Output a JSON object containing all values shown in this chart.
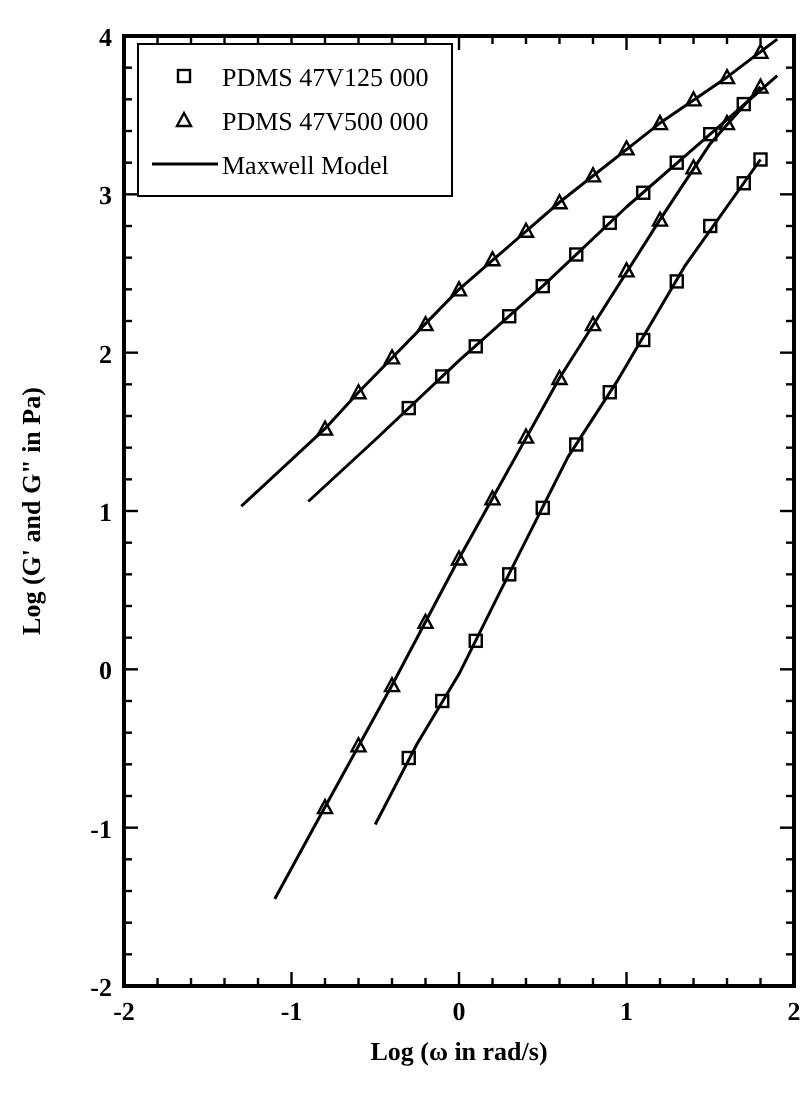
{
  "chart_data": {
    "type": "line",
    "xlabel": "Log (ω in rad/s)",
    "ylabel": "Log (G' and G\" in Pa)",
    "xlim": [
      -2,
      2
    ],
    "ylim": [
      -2,
      4
    ],
    "xticks": [
      -2,
      {
        "value": -1.8,
        "label": null
      },
      {
        "value": -1.6,
        "label": null
      },
      {
        "value": -1.4,
        "label": null
      },
      {
        "value": -1.2,
        "label": null
      },
      -1,
      {
        "value": -0.8,
        "label": null
      },
      {
        "value": -0.6,
        "label": null
      },
      {
        "value": -0.4,
        "label": null
      },
      {
        "value": -0.2,
        "label": null
      },
      0,
      {
        "value": 0.2,
        "label": null
      },
      {
        "value": 0.4,
        "label": null
      },
      {
        "value": 0.6,
        "label": null
      },
      {
        "value": 0.8,
        "label": null
      },
      1,
      {
        "value": 1.2,
        "label": null
      },
      {
        "value": 1.4,
        "label": null
      },
      {
        "value": 1.6,
        "label": null
      },
      {
        "value": 1.8,
        "label": null
      },
      2
    ],
    "yticks": [
      -2,
      {
        "value": -1.8,
        "label": null
      },
      {
        "value": -1.6,
        "label": null
      },
      {
        "value": -1.4,
        "label": null
      },
      {
        "value": -1.2,
        "label": null
      },
      -1,
      {
        "value": -0.8,
        "label": null
      },
      {
        "value": -0.6,
        "label": null
      },
      {
        "value": -0.4,
        "label": null
      },
      {
        "value": -0.2,
        "label": null
      },
      0,
      {
        "value": 0.2,
        "label": null
      },
      {
        "value": 0.4,
        "label": null
      },
      {
        "value": 0.6,
        "label": null
      },
      {
        "value": 0.8,
        "label": null
      },
      1,
      {
        "value": 1.2,
        "label": null
      },
      {
        "value": 1.4,
        "label": null
      },
      {
        "value": 1.6,
        "label": null
      },
      {
        "value": 1.8,
        "label": null
      },
      2,
      {
        "value": 2.2,
        "label": null
      },
      {
        "value": 2.4,
        "label": null
      },
      {
        "value": 2.6,
        "label": null
      },
      {
        "value": 2.8,
        "label": null
      },
      3,
      {
        "value": 3.2,
        "label": null
      },
      {
        "value": 3.4,
        "label": null
      },
      {
        "value": 3.6,
        "label": null
      },
      {
        "value": 3.8,
        "label": null
      },
      4
    ],
    "grid": false,
    "legend": "top left",
    "series": [
      {
        "name": "PDMS 47V125 000",
        "type": "scatter",
        "marker": "square",
        "color": "#000000",
        "x": [
          -0.3,
          -0.1,
          0.1,
          0.3,
          0.5,
          0.7,
          0.9,
          1.1,
          1.3,
          1.5,
          1.7,
          -0.3,
          -0.1,
          0.1,
          0.3,
          0.5,
          0.7,
          0.9,
          1.1,
          1.3,
          1.5,
          1.7,
          1.8
        ],
        "values": [
          1.65,
          1.85,
          2.04,
          2.23,
          2.42,
          2.62,
          2.82,
          3.01,
          3.2,
          3.38,
          3.57,
          -0.56,
          -0.2,
          0.18,
          0.6,
          1.02,
          1.42,
          1.75,
          2.08,
          2.45,
          2.8,
          3.07,
          3.22
        ]
      },
      {
        "name": "PDMS 47V500 000",
        "type": "scatter",
        "marker": "triangle",
        "color": "#000000",
        "x": [
          -0.8,
          -0.6,
          -0.4,
          -0.2,
          0,
          0.2,
          0.4,
          0.6,
          0.8,
          1.0,
          1.2,
          1.4,
          1.6,
          1.8,
          -0.8,
          -0.6,
          -0.4,
          -0.2,
          0,
          0.2,
          0.4,
          0.6,
          0.8,
          1.0,
          1.2,
          1.4,
          1.6,
          1.8
        ],
        "values": [
          1.52,
          1.75,
          1.97,
          2.18,
          2.4,
          2.59,
          2.77,
          2.95,
          3.12,
          3.29,
          3.45,
          3.6,
          3.74,
          3.9,
          -0.87,
          -0.48,
          -0.1,
          0.3,
          0.7,
          1.08,
          1.47,
          1.84,
          2.18,
          2.52,
          2.84,
          3.17,
          3.45,
          3.68
        ]
      },
      {
        "name": "Maxwell Model",
        "marker": "none",
        "color": "#000000",
        "x": [
          -1.3,
          -0.8,
          -0.6,
          0,
          0.6,
          1.2,
          1.6,
          1.9
        ],
        "values": [
          1.03,
          1.52,
          1.75,
          2.4,
          2.95,
          3.45,
          3.74,
          3.98
        ]
      },
      {
        "marker": "none",
        "color": "#000000",
        "x": [
          -0.9,
          -0.5,
          0,
          0.5,
          1.0,
          1.5,
          1.9
        ],
        "values": [
          1.06,
          1.45,
          1.95,
          2.42,
          2.92,
          3.38,
          3.75
        ]
      },
      {
        "marker": "none",
        "color": "#000000",
        "x": [
          -1.1,
          -0.8,
          -0.4,
          0,
          0.6,
          1.2,
          1.5,
          1.8
        ],
        "values": [
          -1.45,
          -0.87,
          -0.1,
          0.7,
          1.84,
          2.84,
          3.32,
          3.68
        ]
      },
      {
        "marker": "none",
        "color": "#000000",
        "x": [
          -0.5,
          -0.25,
          0,
          0.25,
          0.65,
          0.95,
          1.35,
          1.8
        ],
        "values": [
          -0.98,
          -0.47,
          -0.03,
          0.5,
          1.34,
          1.83,
          2.55,
          3.22
        ]
      }
    ]
  }
}
